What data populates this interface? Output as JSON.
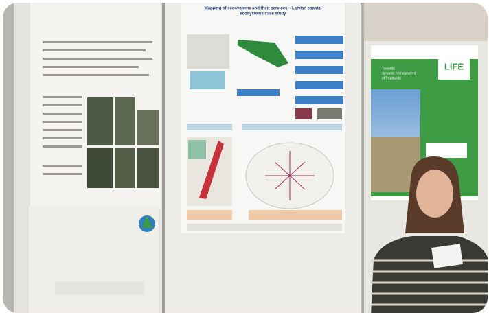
{
  "poster": {
    "title_lines": [
      "Mapping of ecosystems and their services – Latvian coastal",
      "ecosystems case study"
    ]
  },
  "banner": {
    "logo": "LIFE",
    "title_lines": [
      "Towards",
      "dynamic management",
      "of Peatlands"
    ]
  }
}
